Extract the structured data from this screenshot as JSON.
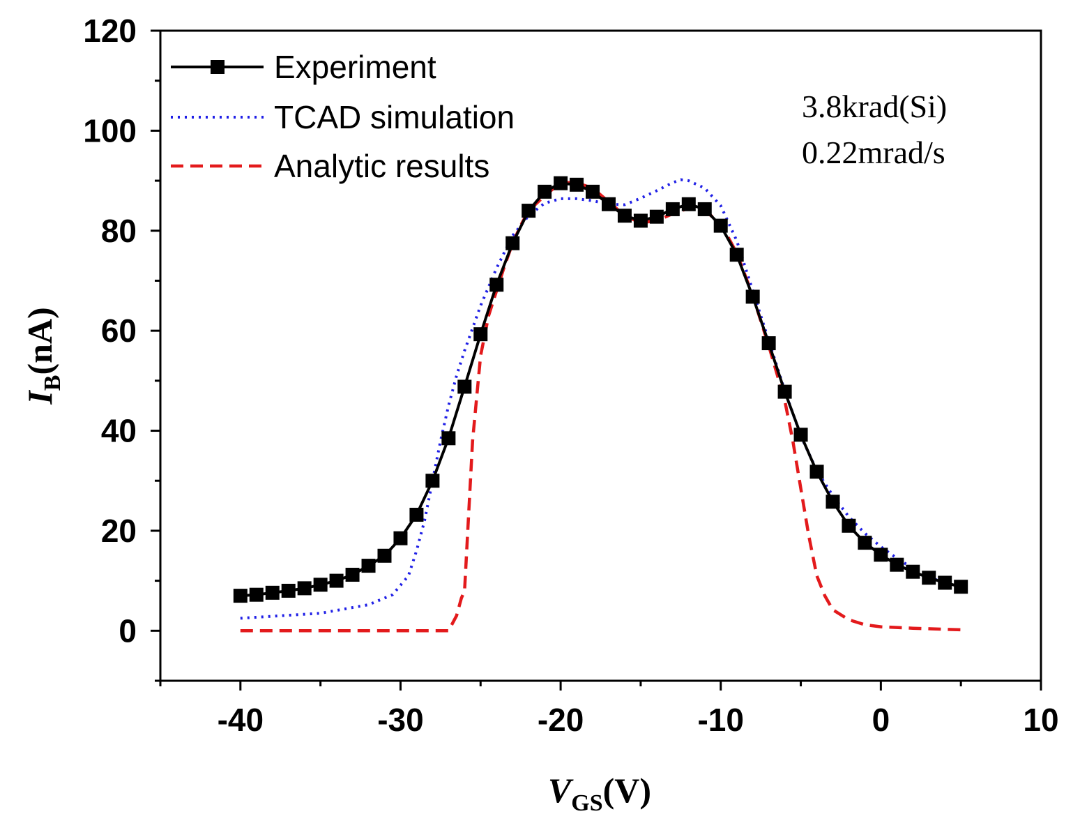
{
  "chart_data": {
    "type": "line",
    "title": "",
    "xlabel": {
      "main": "V",
      "sub": "GS",
      "unit": "(V)"
    },
    "ylabel": {
      "main": "I",
      "sub": "B",
      "unit": "(nA)"
    },
    "xlim": [
      -45,
      10
    ],
    "ylim": [
      -10,
      120
    ],
    "xticks": [
      -40,
      -30,
      -20,
      -10,
      0,
      10
    ],
    "yticks": [
      0,
      20,
      40,
      60,
      80,
      100,
      120
    ],
    "grid": false,
    "legend_position": "top-left",
    "annotations": [
      "3.8krad(Si)",
      "0.22mrad/s"
    ],
    "series": [
      {
        "name": "Experiment",
        "style": "solid-square-markers",
        "color": "#000000",
        "x": [
          -40,
          -39,
          -38,
          -37,
          -36,
          -35,
          -34,
          -33,
          -32,
          -31,
          -30,
          -29,
          -28,
          -27,
          -26,
          -25,
          -24,
          -23,
          -22,
          -21,
          -20,
          -19,
          -18,
          -17,
          -16,
          -15,
          -14,
          -13,
          -12,
          -11,
          -10,
          -9,
          -8,
          -7,
          -6,
          -5,
          -4,
          -3,
          -2,
          -1,
          0,
          1,
          2,
          3,
          4,
          5
        ],
        "y": [
          7,
          7.2,
          7.6,
          8,
          8.5,
          9.2,
          10,
          11.2,
          13,
          15,
          18.5,
          23.2,
          30,
          38.5,
          48.8,
          59.3,
          69.2,
          77.5,
          84,
          87.8,
          89.5,
          89.2,
          87.8,
          85.3,
          83,
          82,
          82.8,
          84.3,
          85.3,
          84.3,
          81,
          75.2,
          66.8,
          57.5,
          47.8,
          39.2,
          31.8,
          25.8,
          21,
          17.6,
          15.2,
          13.2,
          11.8,
          10.6,
          9.6,
          8.8
        ]
      },
      {
        "name": "TCAD simulation",
        "style": "dotted",
        "color": "#1f1fe6",
        "x": [
          -40,
          -35,
          -32,
          -30.5,
          -29.5,
          -29,
          -28.5,
          -28,
          -27.5,
          -27,
          -26.5,
          -26,
          -25,
          -24,
          -23,
          -22,
          -21,
          -20,
          -19,
          -18,
          -17,
          -16,
          -15,
          -14,
          -13,
          -12.5,
          -12,
          -11,
          -10,
          -9,
          -8,
          -7,
          -6,
          -5,
          -4,
          -3,
          -2,
          -1,
          0,
          1,
          2,
          3,
          4,
          5
        ],
        "y": [
          2.5,
          3.5,
          5.2,
          7.2,
          11,
          16,
          22,
          30,
          38,
          45,
          51,
          56,
          65,
          72.5,
          79,
          83,
          85.5,
          86.4,
          86.4,
          86,
          85.3,
          85.2,
          86.5,
          88,
          89.6,
          90.2,
          90,
          88.5,
          85,
          78,
          68,
          58,
          48,
          39,
          32,
          27,
          22.8,
          19.5,
          16.8,
          14.5,
          12.5,
          10.8,
          9.5,
          8.5
        ]
      },
      {
        "name": "Analytic results",
        "style": "dashed",
        "color": "#e31a1c",
        "x": [
          -40,
          -30,
          -27,
          -26.5,
          -26.2,
          -26,
          -25.8,
          -25.5,
          -25,
          -24.5,
          -24,
          -23.5,
          -23,
          -22.5,
          -22,
          -21,
          -20,
          -19,
          -18,
          -17,
          -16,
          -15,
          -14,
          -13,
          -12,
          -11,
          -10,
          -9,
          -8,
          -7,
          -6,
          -5.5,
          -5,
          -4.5,
          -4,
          -3.5,
          -3,
          -2,
          -1,
          0,
          2,
          4,
          5
        ],
        "y": [
          0,
          0,
          0,
          3,
          6.5,
          8,
          20,
          38,
          55,
          63,
          68,
          73,
          77.5,
          81,
          84,
          87,
          89.6,
          89.6,
          88.5,
          85.8,
          83,
          81.6,
          82,
          83.4,
          84.5,
          84,
          81.5,
          75.5,
          67,
          57,
          46,
          38,
          28.5,
          19,
          11,
          7,
          4.2,
          2.2,
          1.2,
          0.8,
          0.5,
          0.3,
          0.2
        ]
      }
    ]
  }
}
